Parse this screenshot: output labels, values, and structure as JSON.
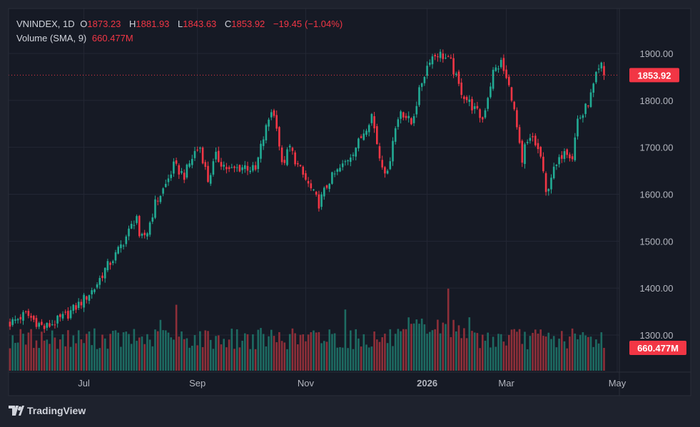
{
  "chart_data": {
    "type": "candlestick",
    "symbol": "VNINDEX",
    "interval": "1D",
    "last_bar": {
      "open": "1873.23",
      "high": "1881.93",
      "low": "1843.63",
      "close": "1853.92",
      "change": "−19.45",
      "change_pct": "(−1.04%)"
    },
    "last_values": {
      "open": 1873.23,
      "high": 1881.93,
      "low": 1843.63,
      "close": 1853.92
    },
    "volume_label": "Volume (SMA, 9)",
    "volume_value": "660.477M",
    "price_label": "1853.92",
    "ylim": [
      1225,
      1995
    ],
    "y_ticks": [
      "1900.00",
      "1800.00",
      "1700.00",
      "1600.00",
      "1500.00",
      "1400.00",
      "1300.00"
    ],
    "y_tick_values": [
      1900,
      1800,
      1700,
      1600,
      1500,
      1400,
      1300
    ],
    "x_ticks": [
      {
        "label": "Jul",
        "index": 28,
        "bold": false
      },
      {
        "label": "Sep",
        "index": 71,
        "bold": false
      },
      {
        "label": "Nov",
        "index": 112,
        "bold": false
      },
      {
        "label": "2026",
        "index": 158,
        "bold": true
      },
      {
        "label": "Mar",
        "index": 188,
        "bold": false
      },
      {
        "label": "May",
        "index": 230,
        "bold": false
      }
    ],
    "bar_count": 226,
    "close_keypoints": [
      [
        0,
        1325
      ],
      [
        6,
        1345
      ],
      [
        13,
        1315
      ],
      [
        21,
        1340
      ],
      [
        26,
        1365
      ],
      [
        32,
        1400
      ],
      [
        36,
        1440
      ],
      [
        40,
        1470
      ],
      [
        45,
        1520
      ],
      [
        48,
        1555
      ],
      [
        49,
        1500
      ],
      [
        52,
        1520
      ],
      [
        55,
        1580
      ],
      [
        59,
        1620
      ],
      [
        62,
        1660
      ],
      [
        66,
        1640
      ],
      [
        70,
        1690
      ],
      [
        72,
        1700
      ],
      [
        75,
        1630
      ],
      [
        78,
        1680
      ],
      [
        83,
        1650
      ],
      [
        89,
        1660
      ],
      [
        93,
        1650
      ],
      [
        95,
        1700
      ],
      [
        99,
        1780
      ],
      [
        101,
        1750
      ],
      [
        103,
        1660
      ],
      [
        106,
        1700
      ],
      [
        109,
        1660
      ],
      [
        113,
        1620
      ],
      [
        117,
        1580
      ],
      [
        121,
        1630
      ],
      [
        126,
        1660
      ],
      [
        132,
        1710
      ],
      [
        137,
        1770
      ],
      [
        140,
        1680
      ],
      [
        143,
        1640
      ],
      [
        145,
        1720
      ],
      [
        148,
        1780
      ],
      [
        152,
        1750
      ],
      [
        156,
        1840
      ],
      [
        159,
        1890
      ],
      [
        162,
        1900
      ],
      [
        164,
        1895
      ],
      [
        167,
        1880
      ],
      [
        170,
        1830
      ],
      [
        172,
        1810
      ],
      [
        176,
        1780
      ],
      [
        179,
        1760
      ],
      [
        183,
        1860
      ],
      [
        186,
        1880
      ],
      [
        190,
        1810
      ],
      [
        192,
        1740
      ],
      [
        194,
        1660
      ],
      [
        195,
        1700
      ],
      [
        198,
        1720
      ],
      [
        201,
        1680
      ],
      [
        203,
        1600
      ],
      [
        205,
        1640
      ],
      [
        208,
        1670
      ],
      [
        210,
        1700
      ],
      [
        213,
        1680
      ],
      [
        215,
        1760
      ],
      [
        217,
        1770
      ],
      [
        220,
        1810
      ],
      [
        222,
        1850
      ],
      [
        224,
        1873
      ],
      [
        225,
        1854
      ]
    ],
    "colors": {
      "up": "#22ab94",
      "down": "#f23645",
      "vol_up": "#1d6b62",
      "vol_down": "#8e2f39"
    }
  },
  "branding": {
    "logo_text": "TradingView"
  }
}
